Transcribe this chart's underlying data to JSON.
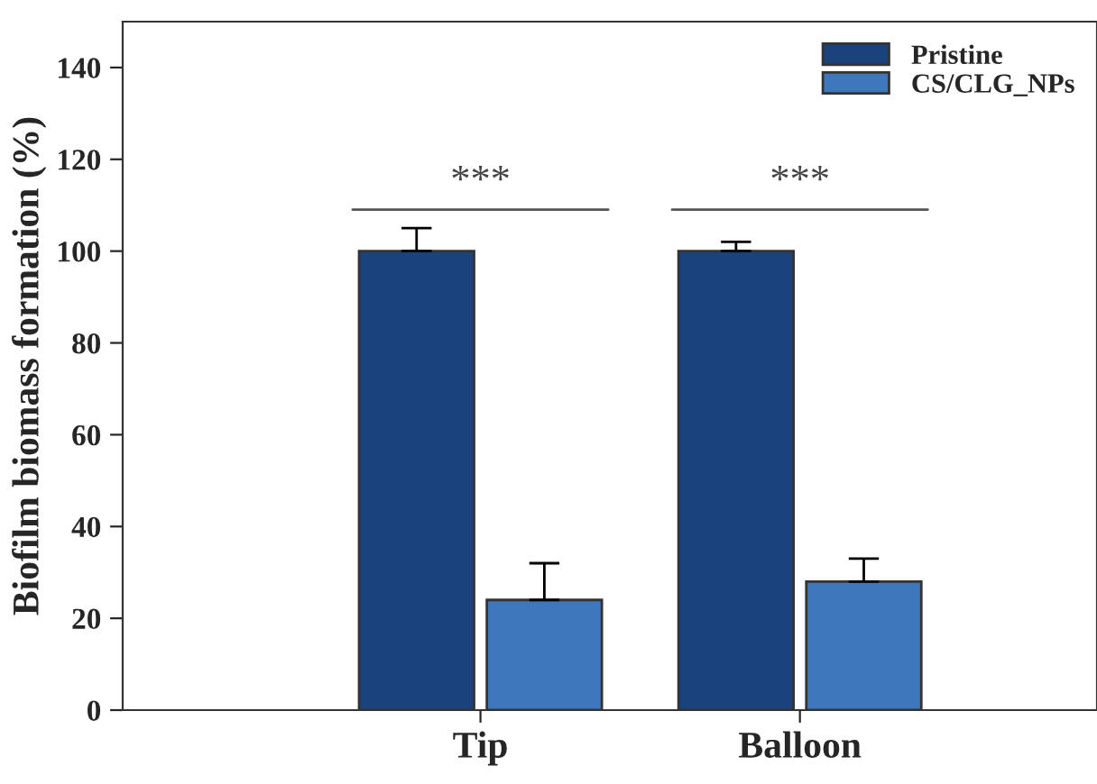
{
  "chart_data": {
    "type": "bar",
    "ylabel": "Biofilm biomass formation (%)",
    "categories": [
      "Tip",
      "Balloon"
    ],
    "series": [
      {
        "name": "Pristine",
        "color": "#1a427c",
        "values": [
          100,
          100
        ],
        "errors": [
          5,
          2
        ]
      },
      {
        "name": "CS/CLG_NPs",
        "color": "#3f77bc",
        "values": [
          24,
          28
        ],
        "errors": [
          8,
          5
        ]
      }
    ],
    "ylim": [
      0,
      150
    ],
    "yticks": [
      0,
      20,
      40,
      60,
      80,
      100,
      120,
      140
    ],
    "annotations": [
      "***",
      "***"
    ],
    "grid": false,
    "legend": "top right"
  }
}
